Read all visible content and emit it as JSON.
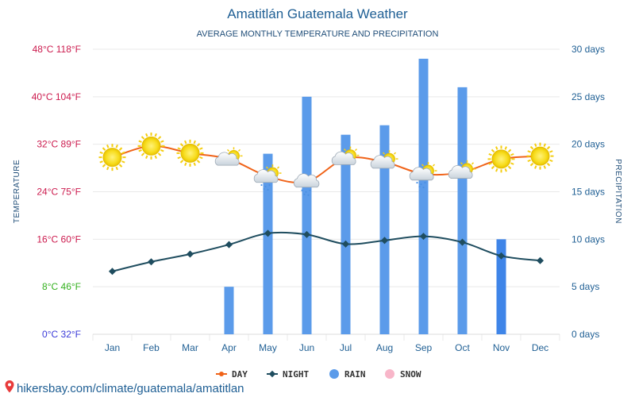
{
  "colors": {
    "day": "#f06319",
    "night": "#1f4d5f",
    "rain": "#5b9bea",
    "rain_dark": "#3f85e8",
    "snow": "#f8b6c9",
    "grid": "#e9e9e9",
    "left_axis": [
      "#3a3ad8",
      "#33b01e",
      "#cc1b4e",
      "#cc1b4e",
      "#cc1b4e",
      "#cc1b4e",
      "#cc1b4e"
    ]
  },
  "footer": {
    "text": "hikersbay.com/climate/guatemala/amatitlan",
    "icon": "map-pin-icon"
  },
  "legend": [
    {
      "label": "DAY",
      "key": "day",
      "marker": "line-dot"
    },
    {
      "label": "NIGHT",
      "key": "night",
      "marker": "line-diamond"
    },
    {
      "label": "RAIN",
      "key": "rain",
      "marker": "circle"
    },
    {
      "label": "SNOW",
      "key": "snow",
      "marker": "circle"
    }
  ],
  "chart_data": {
    "type": "bar+line",
    "title": "Amatitlán Guatemala Weather",
    "subtitle": "AVERAGE MONTHLY TEMPERATURE AND PRECIPITATION",
    "ylabel_left": "TEMPERATURE",
    "ylabel_right": "PRECIPITATION",
    "categories": [
      "Jan",
      "Feb",
      "Mar",
      "Apr",
      "May",
      "Jun",
      "Jul",
      "Aug",
      "Sep",
      "Oct",
      "Nov",
      "Dec"
    ],
    "y_left": {
      "lim": [
        0,
        48
      ],
      "ticks": [
        "0°C 32°F",
        "8°C 46°F",
        "16°C 60°F",
        "24°C 75°F",
        "32°C 89°F",
        "40°C 104°F",
        "48°C 118°F"
      ]
    },
    "y_right": {
      "lim": [
        0,
        30
      ],
      "ticks": [
        "0 days",
        "5 days",
        "10 days",
        "15 days",
        "20 days",
        "25 days",
        "30 days"
      ]
    },
    "series": [
      {
        "name": "DAY",
        "unit": "°C",
        "axis": "left",
        "kind": "line",
        "values": [
          29.8,
          31.7,
          30.5,
          29.5,
          26.6,
          25.7,
          29.6,
          29.0,
          27.0,
          27.3,
          29.5,
          30.0
        ]
      },
      {
        "name": "NIGHT",
        "unit": "°C",
        "axis": "left",
        "kind": "line",
        "values": [
          10.6,
          12.2,
          13.5,
          15.1,
          17.0,
          16.8,
          15.2,
          15.8,
          16.5,
          15.5,
          13.2,
          12.4
        ]
      },
      {
        "name": "RAIN",
        "unit": "days",
        "axis": "right",
        "kind": "bar",
        "values": [
          0,
          0,
          0,
          5,
          19,
          25,
          21,
          22,
          29,
          26,
          10,
          0
        ]
      },
      {
        "name": "SNOW",
        "unit": "days",
        "axis": "right",
        "kind": "bar",
        "values": [
          0,
          0,
          0,
          0,
          0,
          0,
          0,
          0,
          0,
          0,
          0,
          0
        ]
      }
    ],
    "weather_icons": [
      "sun-icon",
      "sun-icon",
      "sun-icon",
      "partly-cloudy-icon",
      "sun-rain-cloud-icon",
      "rain-cloud-icon",
      "partly-cloudy-icon",
      "partly-cloudy-icon",
      "sun-rain-cloud-icon",
      "partly-cloudy-icon",
      "sun-icon",
      "sun-icon"
    ],
    "grid": true
  }
}
